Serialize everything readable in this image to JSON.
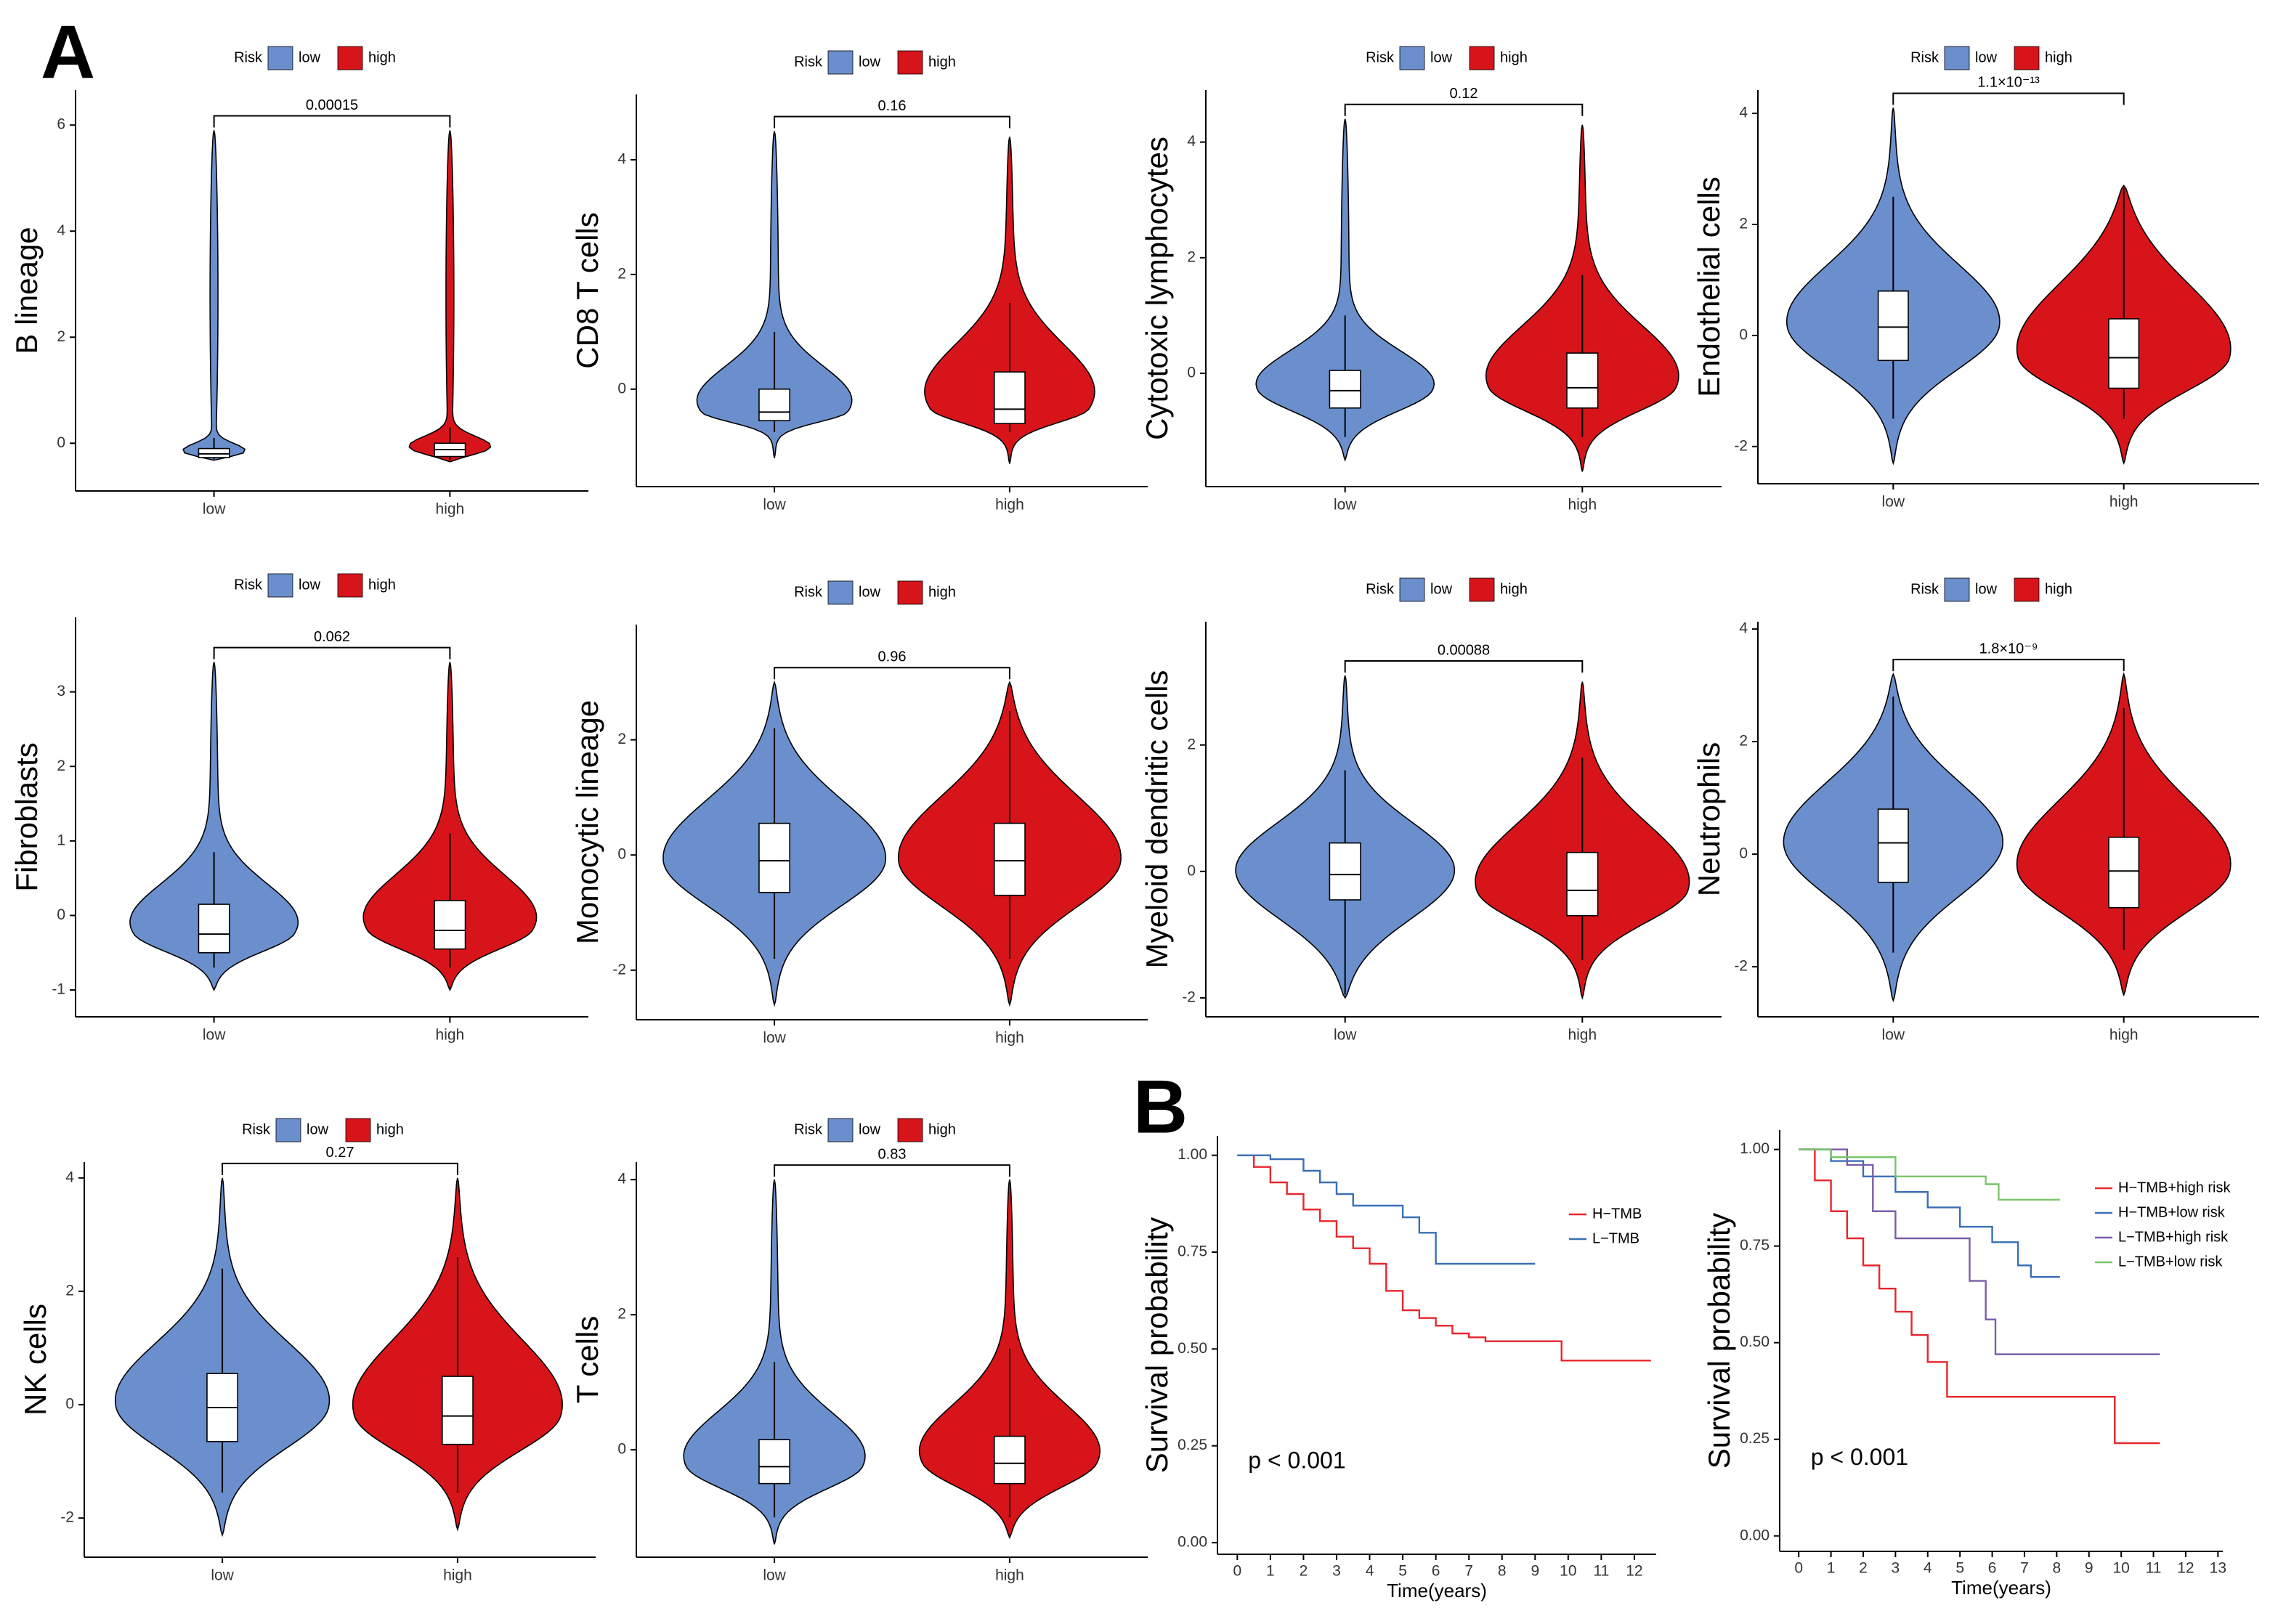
{
  "panel_labels": [
    "A",
    "B"
  ],
  "chart_data": [
    {
      "type": "violin",
      "ylabel": "B lineage",
      "legend_title": "Risk",
      "categories": [
        "low",
        "high"
      ],
      "pvalue": "0.00015",
      "ylim": [
        -0.9,
        6.66
      ],
      "yticks": [
        0,
        2,
        4,
        6
      ],
      "series": [
        {
          "name": "low",
          "color": "#6a8fcc",
          "range": [
            -0.32,
            5.9
          ],
          "box": {
            "whisker_low": -0.3,
            "q1": -0.27,
            "median": -0.2,
            "q3": -0.1,
            "whisker_high": 0.1
          }
        },
        {
          "name": "high",
          "color": "#d7141a",
          "range": [
            -0.35,
            5.9
          ],
          "box": {
            "whisker_low": -0.32,
            "q1": -0.25,
            "median": -0.12,
            "q3": 0.0,
            "whisker_high": 0.3
          }
        }
      ]
    },
    {
      "type": "violin",
      "ylabel": "CD8 T cells",
      "legend_title": "Risk",
      "categories": [
        "low",
        "high"
      ],
      "pvalue": "0.16",
      "ylim": [
        -1.7,
        5.14
      ],
      "yticks": [
        0,
        2,
        4
      ],
      "series": [
        {
          "name": "low",
          "color": "#6a8fcc",
          "range": [
            -1.2,
            4.5
          ],
          "box": {
            "whisker_low": -0.75,
            "q1": -0.55,
            "median": -0.4,
            "q3": 0.0,
            "whisker_high": 1.0
          }
        },
        {
          "name": "high",
          "color": "#d7141a",
          "range": [
            -1.3,
            4.4
          ],
          "box": {
            "whisker_low": -0.75,
            "q1": -0.6,
            "median": -0.35,
            "q3": 0.3,
            "whisker_high": 1.5
          }
        }
      ]
    },
    {
      "type": "violin",
      "ylabel": "Cytotoxic lymphocytes",
      "legend_title": "Risk",
      "categories": [
        "low",
        "high"
      ],
      "pvalue": "0.12",
      "ylim": [
        -1.96,
        4.9
      ],
      "yticks": [
        0,
        2,
        4
      ],
      "series": [
        {
          "name": "low",
          "color": "#6a8fcc",
          "range": [
            -1.5,
            4.4
          ],
          "box": {
            "whisker_low": -1.1,
            "q1": -0.6,
            "median": -0.3,
            "q3": 0.05,
            "whisker_high": 1.0
          }
        },
        {
          "name": "high",
          "color": "#d7141a",
          "range": [
            -1.7,
            4.3
          ],
          "box": {
            "whisker_low": -1.1,
            "q1": -0.6,
            "median": -0.25,
            "q3": 0.35,
            "whisker_high": 1.7
          }
        }
      ]
    },
    {
      "type": "violin",
      "ylabel": "Endothelial cells",
      "legend_title": "Risk",
      "categories": [
        "low",
        "high"
      ],
      "pvalue": "1.1×10⁻¹³",
      "ylim": [
        -2.67,
        4.42
      ],
      "yticks": [
        -2,
        0,
        2,
        4
      ],
      "series": [
        {
          "name": "low",
          "color": "#6a8fcc",
          "range": [
            -2.3,
            4.1
          ],
          "box": {
            "whisker_low": -1.5,
            "q1": -0.45,
            "median": 0.15,
            "q3": 0.8,
            "whisker_high": 2.5
          }
        },
        {
          "name": "high",
          "color": "#d7141a",
          "range": [
            -2.3,
            2.7
          ],
          "box": {
            "whisker_low": -1.5,
            "q1": -0.95,
            "median": -0.4,
            "q3": 0.3,
            "whisker_high": 2.65
          }
        }
      ]
    },
    {
      "type": "violin",
      "ylabel": "Fibroblasts",
      "legend_title": "Risk",
      "categories": [
        "low",
        "high"
      ],
      "pvalue": "0.062",
      "ylim": [
        -1.36,
        4.0
      ],
      "yticks": [
        -1,
        0,
        1,
        2,
        3
      ],
      "series": [
        {
          "name": "low",
          "color": "#6a8fcc",
          "range": [
            -1.0,
            3.4
          ],
          "box": {
            "whisker_low": -0.7,
            "q1": -0.5,
            "median": -0.25,
            "q3": 0.15,
            "whisker_high": 0.85
          }
        },
        {
          "name": "high",
          "color": "#d7141a",
          "range": [
            -1.0,
            3.4
          ],
          "box": {
            "whisker_low": -0.7,
            "q1": -0.45,
            "median": -0.2,
            "q3": 0.2,
            "whisker_high": 1.1
          }
        }
      ]
    },
    {
      "type": "violin",
      "ylabel": "Monocytic lineage",
      "legend_title": "Risk",
      "categories": [
        "low",
        "high"
      ],
      "pvalue": "0.96",
      "ylim": [
        -2.86,
        4.0
      ],
      "yticks": [
        -2,
        0,
        2
      ],
      "series": [
        {
          "name": "low",
          "color": "#6a8fcc",
          "range": [
            -2.6,
            3.0
          ],
          "box": {
            "whisker_low": -1.8,
            "q1": -0.65,
            "median": -0.1,
            "q3": 0.55,
            "whisker_high": 2.2
          }
        },
        {
          "name": "high",
          "color": "#d7141a",
          "range": [
            -2.6,
            3.0
          ],
          "box": {
            "whisker_low": -1.8,
            "q1": -0.7,
            "median": -0.1,
            "q3": 0.55,
            "whisker_high": 2.5
          }
        }
      ]
    },
    {
      "type": "violin",
      "ylabel": "Myeloid dendritic cells",
      "legend_title": "Risk",
      "categories": [
        "low",
        "high"
      ],
      "pvalue": "0.00088",
      "ylim": [
        -2.3,
        3.95
      ],
      "yticks": [
        -2,
        0,
        2
      ],
      "series": [
        {
          "name": "low",
          "color": "#6a8fcc",
          "range": [
            -2.0,
            3.1
          ],
          "box": {
            "whisker_low": -1.95,
            "q1": -0.45,
            "median": -0.05,
            "q3": 0.45,
            "whisker_high": 1.6
          }
        },
        {
          "name": "high",
          "color": "#d7141a",
          "range": [
            -2.0,
            3.0
          ],
          "box": {
            "whisker_low": -1.4,
            "q1": -0.7,
            "median": -0.3,
            "q3": 0.3,
            "whisker_high": 1.8
          }
        }
      ]
    },
    {
      "type": "violin",
      "ylabel": "Neutrophils",
      "legend_title": "Risk",
      "categories": [
        "low",
        "high"
      ],
      "pvalue": "1.8×10⁻⁹",
      "ylim": [
        -2.89,
        4.13
      ],
      "yticks": [
        -2,
        0,
        2,
        4
      ],
      "series": [
        {
          "name": "low",
          "color": "#6a8fcc",
          "range": [
            -2.6,
            3.2
          ],
          "box": {
            "whisker_low": -1.75,
            "q1": -0.5,
            "median": 0.2,
            "q3": 0.8,
            "whisker_high": 2.8
          }
        },
        {
          "name": "high",
          "color": "#d7141a",
          "range": [
            -2.5,
            3.2
          ],
          "box": {
            "whisker_low": -1.7,
            "q1": -0.95,
            "median": -0.3,
            "q3": 0.3,
            "whisker_high": 2.6
          }
        }
      ]
    },
    {
      "type": "violin",
      "ylabel": "NK cells",
      "legend_title": "Risk",
      "categories": [
        "low",
        "high"
      ],
      "pvalue": "0.27",
      "ylim": [
        -2.69,
        4.28
      ],
      "yticks": [
        -2,
        0,
        2,
        4
      ],
      "series": [
        {
          "name": "low",
          "color": "#6a8fcc",
          "range": [
            -2.3,
            4.0
          ],
          "box": {
            "whisker_low": -1.55,
            "q1": -0.65,
            "median": -0.05,
            "q3": 0.55,
            "whisker_high": 2.4
          }
        },
        {
          "name": "high",
          "color": "#d7141a",
          "range": [
            -2.2,
            4.0
          ],
          "box": {
            "whisker_low": -1.55,
            "q1": -0.7,
            "median": -0.2,
            "q3": 0.5,
            "whisker_high": 2.6
          }
        }
      ]
    },
    {
      "type": "violin",
      "ylabel": "T cells",
      "legend_title": "Risk",
      "categories": [
        "low",
        "high"
      ],
      "pvalue": "0.83",
      "ylim": [
        -1.59,
        4.26
      ],
      "yticks": [
        0,
        2,
        4
      ],
      "series": [
        {
          "name": "low",
          "color": "#6a8fcc",
          "range": [
            -1.4,
            4.0
          ],
          "box": {
            "whisker_low": -1.0,
            "q1": -0.5,
            "median": -0.25,
            "q3": 0.15,
            "whisker_high": 1.3
          }
        },
        {
          "name": "high",
          "color": "#d7141a",
          "range": [
            -1.3,
            4.0
          ],
          "box": {
            "whisker_low": -1.0,
            "q1": -0.5,
            "median": -0.2,
            "q3": 0.2,
            "whisker_high": 1.5
          }
        }
      ]
    },
    {
      "type": "km",
      "ylabel": "Survival probability",
      "xlabel": "Time(years)",
      "annotation": "p < 0.001",
      "xlim": [
        -0.6,
        12.66
      ],
      "xticks": [
        0,
        1,
        2,
        3,
        4,
        5,
        6,
        7,
        8,
        9,
        10,
        11,
        12
      ],
      "ylim": [
        -0.03,
        1.05
      ],
      "yticks": [
        {
          "value": 0,
          "label": "0.00"
        },
        {
          "value": 0.25,
          "label": "0.25"
        },
        {
          "value": 0.5,
          "label": "0.50"
        },
        {
          "value": 0.75,
          "label": "0.75"
        },
        {
          "value": 1,
          "label": "1.00"
        }
      ],
      "series": [
        {
          "name": "H−TMB",
          "color": "#e8262b",
          "x": [
            0,
            0.5,
            1,
            1.5,
            2,
            2.5,
            3,
            3.5,
            4,
            4.5,
            5,
            5.5,
            6,
            6.5,
            7,
            7.5,
            9.8,
            12.5
          ],
          "values": [
            1,
            0.97,
            0.93,
            0.9,
            0.86,
            0.83,
            0.79,
            0.76,
            0.72,
            0.65,
            0.6,
            0.58,
            0.56,
            0.54,
            0.53,
            0.52,
            0.47,
            0.47
          ]
        },
        {
          "name": "L−TMB",
          "color": "#3a6fb5",
          "x": [
            0,
            1,
            2,
            2.5,
            3,
            3.5,
            5,
            5.5,
            6,
            9
          ],
          "values": [
            1,
            0.99,
            0.96,
            0.93,
            0.9,
            0.87,
            0.84,
            0.8,
            0.72,
            0.72
          ]
        }
      ]
    },
    {
      "type": "km",
      "ylabel": "Survival probability",
      "xlabel": "Time(years)",
      "annotation": "p < 0.001",
      "xlim": [
        -0.59,
        13.15
      ],
      "xticks": [
        0,
        1,
        2,
        3,
        4,
        5,
        6,
        7,
        8,
        9,
        10,
        11,
        12,
        13
      ],
      "ylim": [
        -0.04,
        1.05
      ],
      "yticks": [
        {
          "value": 0,
          "label": "0.00"
        },
        {
          "value": 0.25,
          "label": "0.25"
        },
        {
          "value": 0.5,
          "label": "0.50"
        },
        {
          "value": 0.75,
          "label": "0.75"
        },
        {
          "value": 1,
          "label": "1.00"
        }
      ],
      "series": [
        {
          "name": "H−TMB+high risk",
          "color": "#e8262b",
          "x": [
            0,
            0.5,
            1,
            1.5,
            2,
            2.5,
            3,
            3.5,
            4,
            4.6,
            9.8,
            11.2
          ],
          "values": [
            1,
            0.92,
            0.84,
            0.77,
            0.7,
            0.64,
            0.58,
            0.52,
            0.45,
            0.36,
            0.24,
            0.24
          ]
        },
        {
          "name": "H−TMB+low risk",
          "color": "#3a6fb5",
          "x": [
            0,
            1,
            2,
            3,
            4,
            5,
            6,
            6.8,
            7.2,
            8.1
          ],
          "values": [
            1,
            0.97,
            0.93,
            0.89,
            0.85,
            0.8,
            0.76,
            0.7,
            0.67,
            0.67
          ]
        },
        {
          "name": "L−TMB+high risk",
          "color": "#7b5ea7",
          "x": [
            0,
            1.5,
            2.3,
            3,
            5,
            5.3,
            5.8,
            6.1,
            11.2
          ],
          "values": [
            1,
            0.96,
            0.84,
            0.77,
            0.77,
            0.66,
            0.56,
            0.47,
            0.47
          ]
        },
        {
          "name": "L−TMB+low risk",
          "color": "#7cc46a",
          "x": [
            0,
            1,
            3,
            5.8,
            6.2,
            8.1
          ],
          "values": [
            1,
            0.98,
            0.93,
            0.91,
            0.87,
            0.87
          ]
        }
      ]
    }
  ]
}
